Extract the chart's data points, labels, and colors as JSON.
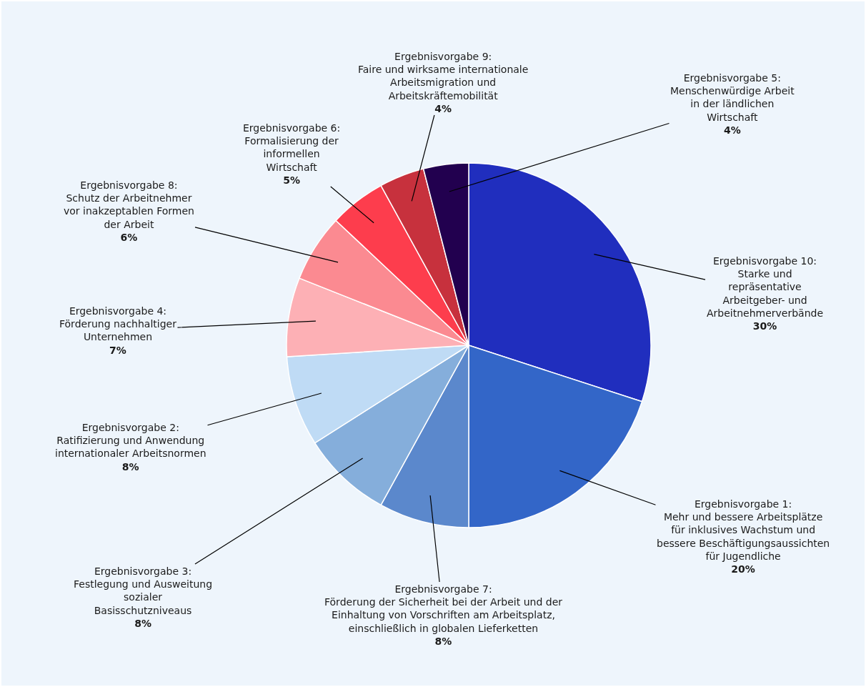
{
  "chart_data": {
    "type": "pie",
    "categories": [
      "Ergebnisvorgabe 10: Starke und repräsentative Arbeitgeber- und Arbeitnehmerverbände",
      "Ergebnisvorgabe 1: Mehr und bessere Arbeitsplätze für inklusives Wachstum und bessere Beschäftigungsaussichten für Jugendliche",
      "Ergebnisvorgabe 7: Förderung der Sicherheit bei der Arbeit und der Einhaltung von Vorschriften am Arbeitsplatz, einschließlich in globalen Lieferketten",
      "Ergebnisvorgabe 3: Festlegung und Ausweitung sozialer Basisschutzniveaus",
      "Ergebnisvorgabe 2: Ratifizierung und Anwendung internationaler Arbeitsnormen",
      "Ergebnisvorgabe 4: Förderung nachhaltiger Unternehmen",
      "Ergebnisvorgabe 8: Schutz der Arbeitnehmer vor inakzeptablen Formen der Arbeit",
      "Ergebnisvorgabe 6: Formalisierung der informellen Wirtschaft",
      "Ergebnisvorgabe 9: Faire und wirksame internationale Arbeitsmigration und Arbeitskräftemobilität",
      "Ergebnisvorgabe 5: Menschenwürdige Arbeit in der ländlichen Wirtschaft"
    ],
    "values": [
      30,
      20,
      8,
      8,
      8,
      7,
      6,
      5,
      4,
      4
    ],
    "colors": [
      "#202ebe",
      "#3366c8",
      "#5b88cc",
      "#85aedb",
      "#bfdbf5",
      "#fdb0b5",
      "#fb8a91",
      "#fd3d4d",
      "#c7313d",
      "#22004f"
    ],
    "value_labels": [
      "30%",
      "20%",
      "8%",
      "8%",
      "8%",
      "7%",
      "6%",
      "5%",
      "4%",
      "4%"
    ],
    "legend": false
  }
}
